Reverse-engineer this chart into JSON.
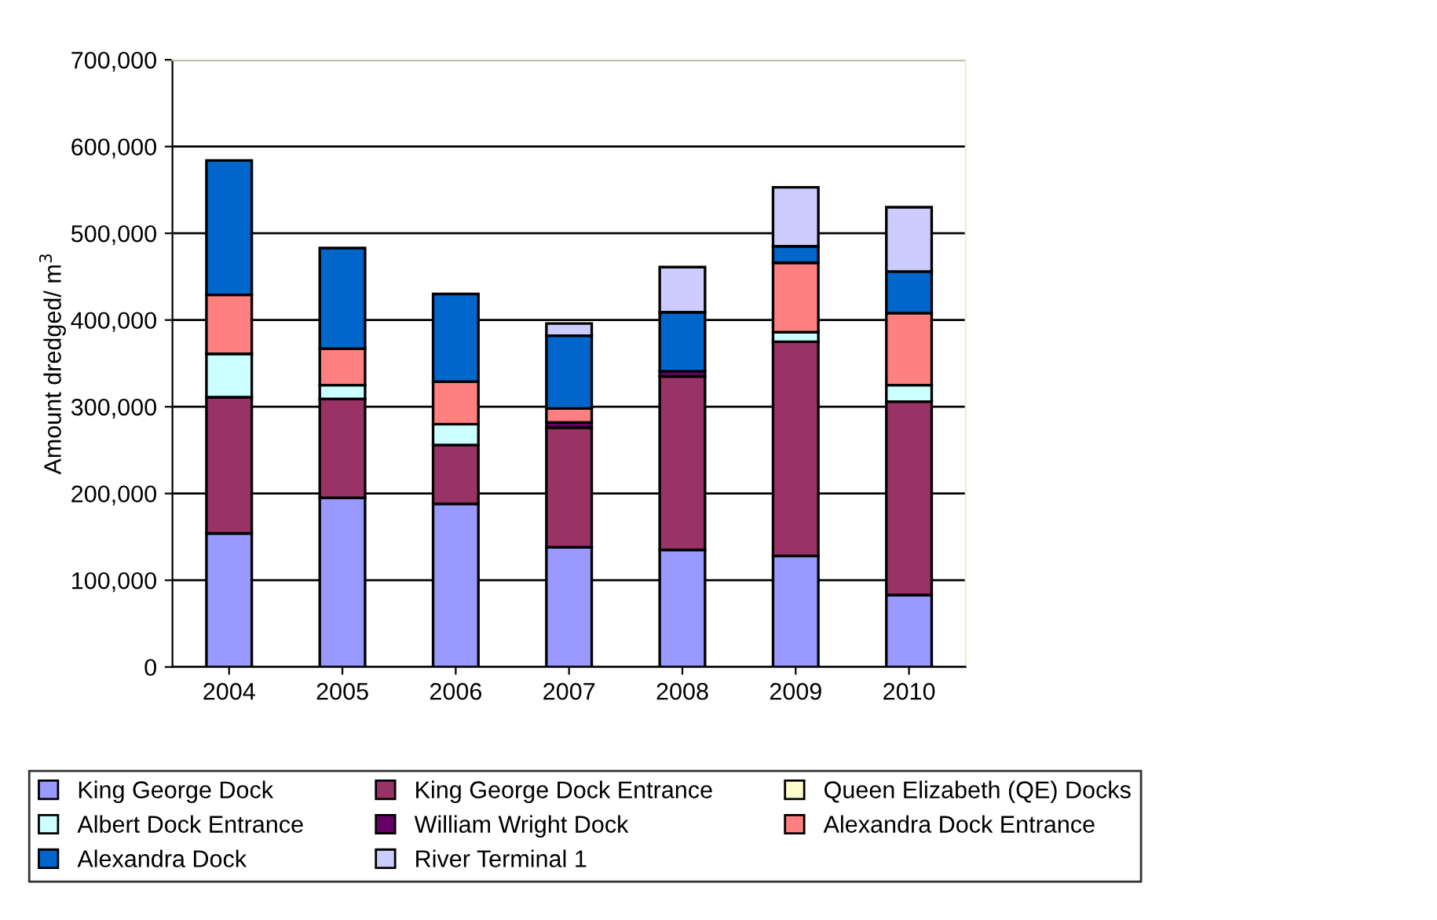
{
  "chart_data": {
    "type": "bar",
    "stacked": true,
    "ylabel": "Amount dredged/ m$^{3}$",
    "categories": [
      "2004",
      "2005",
      "2006",
      "2007",
      "2008",
      "2009",
      "2010"
    ],
    "series": [
      {
        "name": "King George Dock",
        "color": "#9999ff",
        "values": [
          154000,
          195000,
          188000,
          138000,
          135000,
          128000,
          83000
        ]
      },
      {
        "name": "King George Dock Entrance",
        "color": "#993366",
        "values": [
          157000,
          114000,
          68000,
          138000,
          200000,
          247000,
          223000
        ]
      },
      {
        "name": "Queen Elizabeth (QE) Docks",
        "color": "#ffffcc",
        "values": [
          null,
          null,
          null,
          null,
          null,
          null,
          null
        ]
      },
      {
        "name": "Albert Dock Entrance",
        "color": "#ccffff",
        "values": [
          50000,
          16000,
          24000,
          null,
          null,
          11000,
          19000
        ]
      },
      {
        "name": "William Wright Dock",
        "color": "#660066",
        "values": [
          null,
          null,
          null,
          6000,
          6000,
          null,
          null
        ]
      },
      {
        "name": "Alexandra Dock Entrance",
        "color": "#ff8080",
        "values": [
          68000,
          42000,
          49000,
          16000,
          null,
          80000,
          83000
        ]
      },
      {
        "name": "Alexandra Dock",
        "color": "#0066cc",
        "values": [
          155000,
          116000,
          101000,
          84000,
          68000,
          19000,
          48000
        ]
      },
      {
        "name": "River Terminal 1",
        "color": "#ccccff",
        "values": [
          null,
          null,
          null,
          14000,
          52000,
          68000,
          74000
        ]
      }
    ],
    "ylim": [
      0,
      700000
    ],
    "yticks": [
      {
        "value": 0,
        "label": "0"
      },
      {
        "value": 100000,
        "label": "100,000"
      },
      {
        "value": 200000,
        "label": "200,000"
      },
      {
        "value": 300000,
        "label": "300,000"
      },
      {
        "value": 400000,
        "label": "400,000"
      },
      {
        "value": 500000,
        "label": "500,000"
      },
      {
        "value": 600000,
        "label": "600,000"
      },
      {
        "value": 700000,
        "label": "700,000"
      }
    ],
    "grid": "y",
    "legend": "bottom"
  }
}
